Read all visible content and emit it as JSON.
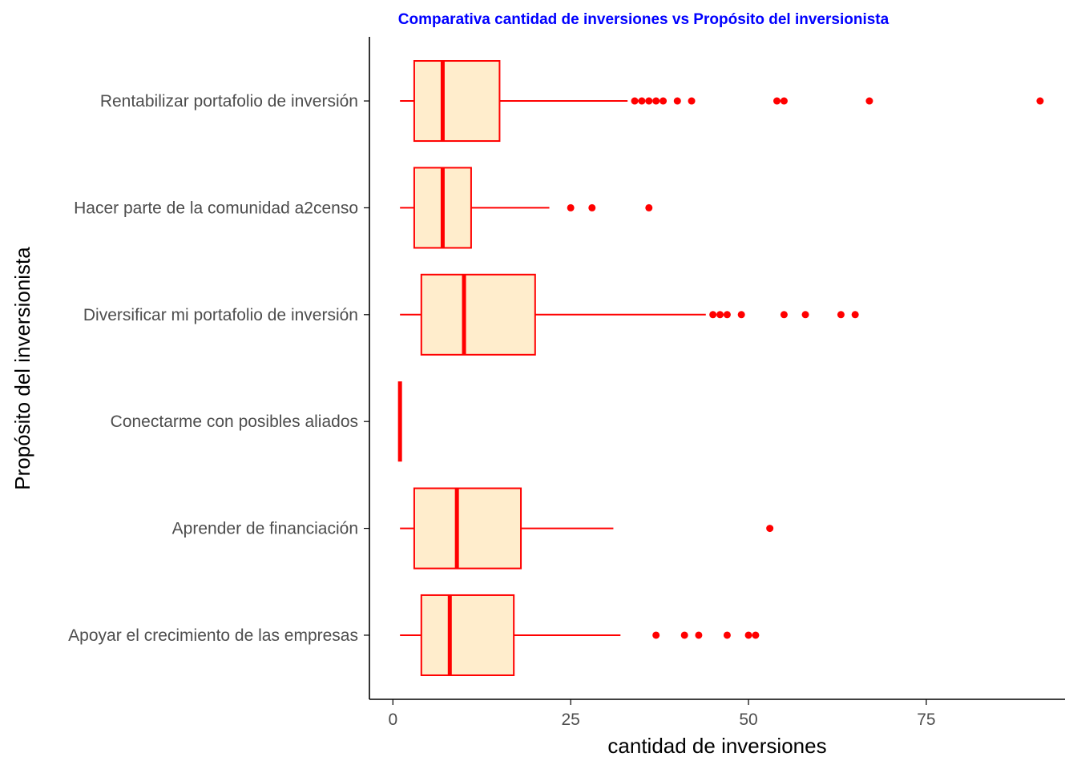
{
  "chart_data": {
    "type": "boxplot",
    "orientation": "horizontal",
    "title": "Comparativa cantidad de inversiones vs Propósito del inversionista",
    "xlabel": "cantidad de inversiones",
    "ylabel": "Propósito del inversionista",
    "xlim": [
      -3.3,
      94.5
    ],
    "x_ticks": [
      0,
      25,
      50,
      75
    ],
    "grid": false,
    "legend": "none",
    "categories": [
      {
        "label": "Rentabilizar portafolio de inversión",
        "min": 1,
        "q1": 3,
        "median": 7,
        "q3": 15,
        "max": 33,
        "outliers": [
          34,
          35,
          36,
          37,
          38,
          40,
          42,
          54,
          55,
          67,
          91
        ]
      },
      {
        "label": "Hacer parte de la comunidad a2censo",
        "min": 1,
        "q1": 3,
        "median": 7,
        "q3": 11,
        "max": 22,
        "outliers": [
          25,
          28,
          36
        ]
      },
      {
        "label": "Diversificar mi portafolio de inversión",
        "min": 1,
        "q1": 4,
        "median": 10,
        "q3": 20,
        "max": 44,
        "outliers": [
          45,
          46,
          47,
          49,
          55,
          58,
          63,
          65
        ]
      },
      {
        "label": "Conectarme con posibles aliados",
        "min": 1,
        "q1": 1,
        "median": 1,
        "q3": 1,
        "max": 1,
        "outliers": []
      },
      {
        "label": "Aprender de financiación",
        "min": 1,
        "q1": 3,
        "median": 9,
        "q3": 18,
        "max": 31,
        "outliers": [
          53
        ]
      },
      {
        "label": "Apoyar el crecimiento de las empresas",
        "min": 1,
        "q1": 4,
        "median": 8,
        "q3": 17,
        "max": 32,
        "outliers": [
          37,
          41,
          43,
          47,
          50,
          51
        ]
      }
    ],
    "colors": {
      "box_fill": "#ffedcc",
      "box_stroke": "#ff0000",
      "outlier": "#ff0000",
      "title": "#0000ff",
      "axis": "#000000",
      "tick_text": "#4d4d4d"
    }
  }
}
